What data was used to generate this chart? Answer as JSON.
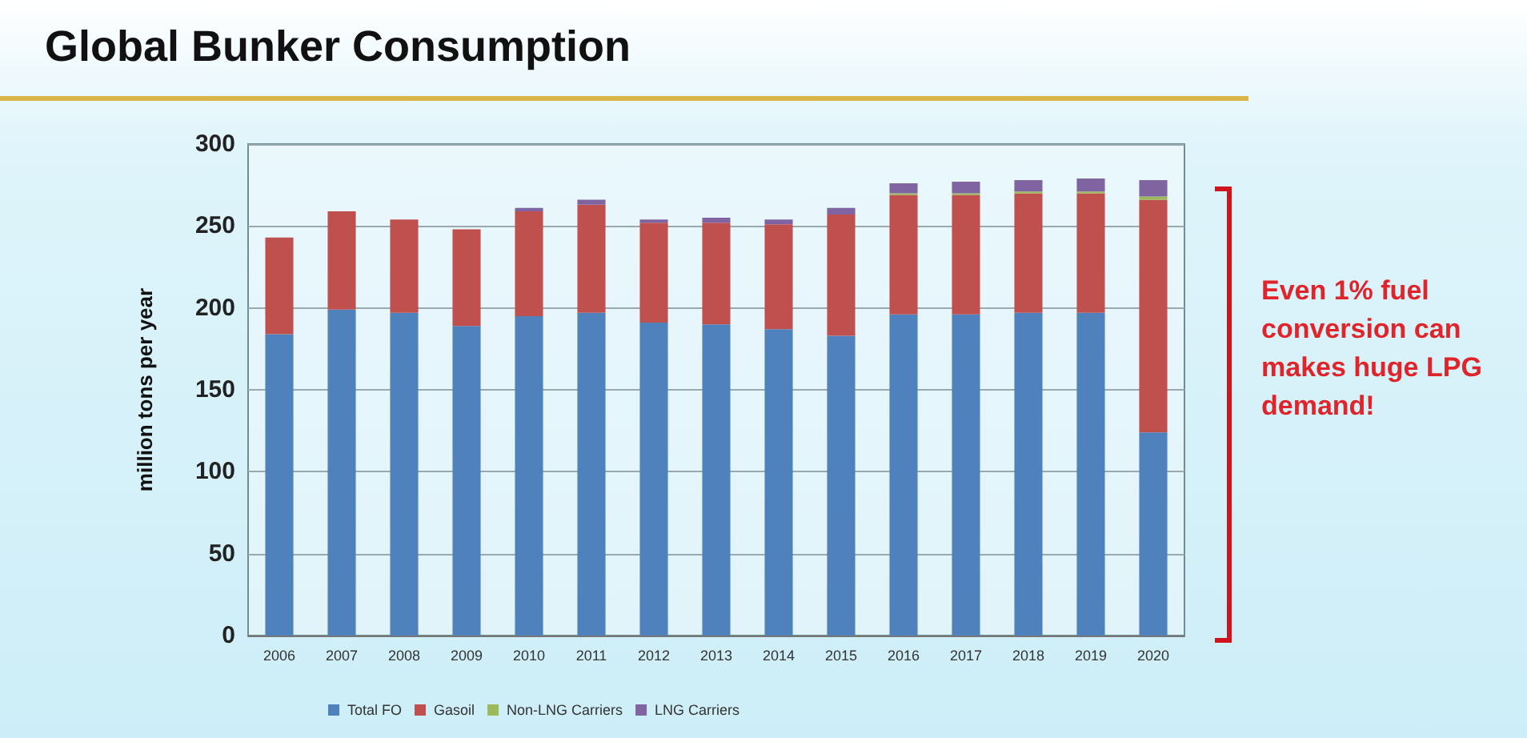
{
  "chart_data": {
    "type": "bar",
    "title": "Global Bunker Consumption",
    "ylabel": "million tons per year",
    "categories": [
      "2006",
      "2007",
      "2008",
      "2009",
      "2010",
      "2011",
      "2012",
      "2013",
      "2014",
      "2015",
      "2016",
      "2017",
      "2018",
      "2019",
      "2020"
    ],
    "series": [
      {
        "name": "Total FO",
        "color": "#4f81bd",
        "values": [
          184,
          199,
          197,
          189,
          195,
          197,
          191,
          190,
          187,
          183,
          196,
          196,
          197,
          197,
          124
        ]
      },
      {
        "name": "Gasoil",
        "color": "#c0504d",
        "values": [
          59,
          60,
          57,
          59,
          64,
          66,
          61,
          62,
          64,
          74,
          73,
          73,
          73,
          73,
          142
        ]
      },
      {
        "name": "Non-LNG Carriers",
        "color": "#9bbb59",
        "values": [
          0,
          0,
          0,
          0,
          0,
          0,
          0,
          0,
          0,
          0,
          1,
          1,
          1,
          1,
          2
        ]
      },
      {
        "name": "LNG Carriers",
        "color": "#8064a2",
        "values": [
          null,
          null,
          null,
          null,
          2,
          3,
          2,
          3,
          3,
          4,
          6,
          7,
          7,
          8,
          10
        ]
      }
    ],
    "stacked": true,
    "ylim": [
      0,
      300
    ],
    "yticks": [
      0,
      50,
      100,
      150,
      200,
      250,
      300
    ],
    "grid": "y",
    "legend": "bottom",
    "annotations": [
      "Even 1% fuel conversion can makes huge LPG demand!"
    ]
  }
}
